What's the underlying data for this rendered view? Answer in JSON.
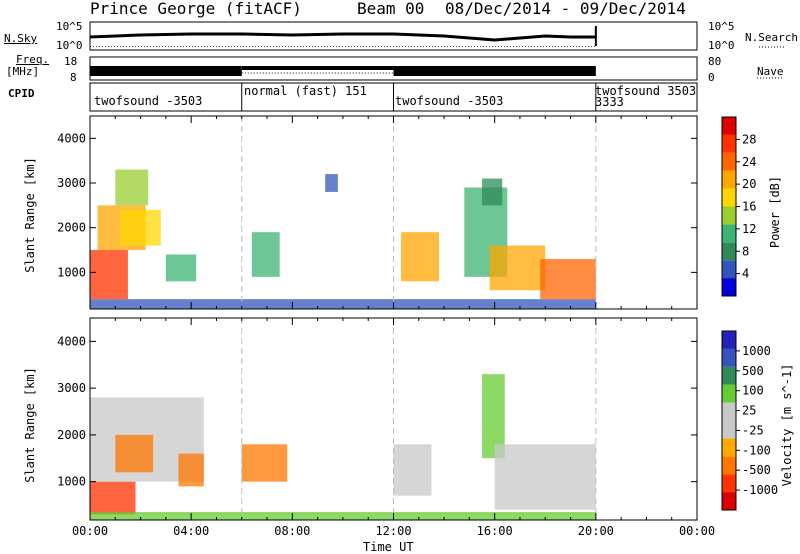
{
  "header": {
    "station": "Prince George (fitACF)",
    "beam_label": "Beam 00",
    "date_range": "08/Dec/2014 - 09/Dec/2014"
  },
  "top_panels": {
    "nsky_label": "N.Sky",
    "nsky_ticks": [
      "10^5",
      "10^0"
    ],
    "nsearch_label": "N.Search",
    "nsearch_ticks": [
      "10^5",
      "10^0"
    ],
    "freq_label_1": "Freq.",
    "freq_label_2": "[MHz]",
    "freq_ticks": [
      "18",
      "8"
    ],
    "nave_label": "Nave",
    "nave_ticks": [
      "80",
      "0"
    ],
    "cpid_label": "CPID",
    "cpid_segments": [
      {
        "label": "twofsound -3503",
        "start": 0,
        "end": 6
      },
      {
        "label": "normal (fast) 151",
        "start": 6,
        "end": 12
      },
      {
        "label": "twofsound -3503",
        "start": 12,
        "end": 20
      },
      {
        "label": "twofsound 3503",
        "start": 20,
        "end": 20.4
      },
      {
        "label": "3333",
        "start": 20,
        "end": 20.4
      }
    ]
  },
  "colors": {
    "power": [
      "#0000dd",
      "#3355bb",
      "#2e8b57",
      "#3cb371",
      "#9acd32",
      "#ffd700",
      "#ffa500",
      "#ff6600",
      "#ff3300",
      "#dd0000"
    ],
    "velocity": [
      "#dd0000",
      "#ff3300",
      "#ff7700",
      "#ffaa00",
      "#c8c8c8",
      "#c8c8c8",
      "#66cc33",
      "#2e8b57",
      "#3355bb",
      "#2222bb"
    ]
  },
  "chart_data": [
    {
      "type": "heatmap",
      "title": "",
      "ylabel": "Slant Range [km]",
      "xlabel": "Time UT",
      "xlim": [
        0,
        24
      ],
      "ylim": [
        180,
        4500
      ],
      "x_ticks": [
        "00:00",
        "04:00",
        "08:00",
        "12:00",
        "16:00",
        "20:00",
        "00:00"
      ],
      "y_ticks": [
        "1000",
        "2000",
        "3000",
        "4000"
      ],
      "colorbar_label": "Power [dB]",
      "colorbar_ticks": [
        "4",
        "8",
        "12",
        "16",
        "20",
        "24",
        "28"
      ],
      "regions": [
        {
          "x": [
            0.0,
            1.5
          ],
          "y": [
            400,
            1500
          ],
          "level": 8
        },
        {
          "x": [
            0.3,
            2.2
          ],
          "y": [
            1500,
            2500
          ],
          "level": 6
        },
        {
          "x": [
            1.2,
            2.8
          ],
          "y": [
            1600,
            2400
          ],
          "level": 5
        },
        {
          "x": [
            1.0,
            2.3
          ],
          "y": [
            2500,
            3300
          ],
          "level": 4
        },
        {
          "x": [
            3.0,
            4.2
          ],
          "y": [
            800,
            1400
          ],
          "level": 3
        },
        {
          "x": [
            6.4,
            7.5
          ],
          "y": [
            900,
            1900
          ],
          "level": 3
        },
        {
          "x": [
            9.3,
            9.8
          ],
          "y": [
            2800,
            3200
          ],
          "level": 1
        },
        {
          "x": [
            12.3,
            13.8
          ],
          "y": [
            800,
            1900
          ],
          "level": 6
        },
        {
          "x": [
            14.8,
            16.5
          ],
          "y": [
            900,
            2900
          ],
          "level": 3
        },
        {
          "x": [
            15.8,
            18.0
          ],
          "y": [
            600,
            1600
          ],
          "level": 6
        },
        {
          "x": [
            17.8,
            20.0
          ],
          "y": [
            400,
            1300
          ],
          "level": 7
        },
        {
          "x": [
            15.5,
            16.3
          ],
          "y": [
            2500,
            3100
          ],
          "level": 2
        },
        {
          "x": [
            0.0,
            20.0
          ],
          "y": [
            180,
            400
          ],
          "level": 1
        }
      ]
    },
    {
      "type": "heatmap",
      "title": "",
      "ylabel": "Slant Range [km]",
      "xlabel": "Time UT",
      "xlim": [
        0,
        24
      ],
      "ylim": [
        180,
        4500
      ],
      "x_ticks": [
        "00:00",
        "04:00",
        "08:00",
        "12:00",
        "16:00",
        "20:00",
        "00:00"
      ],
      "y_ticks": [
        "1000",
        "2000",
        "3000",
        "4000"
      ],
      "colorbar_label": "Velocity [m s^-1]",
      "colorbar_ticks": [
        "1000",
        "500",
        "100",
        "25",
        "-25",
        "-100",
        "-500",
        "-1000"
      ],
      "regions": [
        {
          "x": [
            0.0,
            1.8
          ],
          "y": [
            300,
            1000
          ],
          "level": 1
        },
        {
          "x": [
            0.0,
            4.5
          ],
          "y": [
            1000,
            2800
          ],
          "level": 4
        },
        {
          "x": [
            1.0,
            2.5
          ],
          "y": [
            1200,
            2000
          ],
          "level": 2
        },
        {
          "x": [
            3.5,
            4.5
          ],
          "y": [
            900,
            1600
          ],
          "level": 2
        },
        {
          "x": [
            6.0,
            7.8
          ],
          "y": [
            1000,
            1800
          ],
          "level": 2
        },
        {
          "x": [
            12.0,
            13.5
          ],
          "y": [
            700,
            1800
          ],
          "level": 4
        },
        {
          "x": [
            15.5,
            16.4
          ],
          "y": [
            1500,
            3300
          ],
          "level": 6
        },
        {
          "x": [
            16.0,
            20.0
          ],
          "y": [
            400,
            1800
          ],
          "level": 4
        },
        {
          "x": [
            0.0,
            20.0
          ],
          "y": [
            180,
            350
          ],
          "level": 6
        }
      ]
    }
  ],
  "nsky_series": [
    [
      0,
      9
    ],
    [
      2,
      11
    ],
    [
      4,
      12
    ],
    [
      6,
      12
    ],
    [
      8,
      11
    ],
    [
      10,
      12
    ],
    [
      12,
      12
    ],
    [
      14,
      10
    ],
    [
      15,
      8
    ],
    [
      16,
      6
    ],
    [
      17,
      8
    ],
    [
      18,
      10
    ],
    [
      19,
      9
    ],
    [
      20,
      9
    ]
  ]
}
